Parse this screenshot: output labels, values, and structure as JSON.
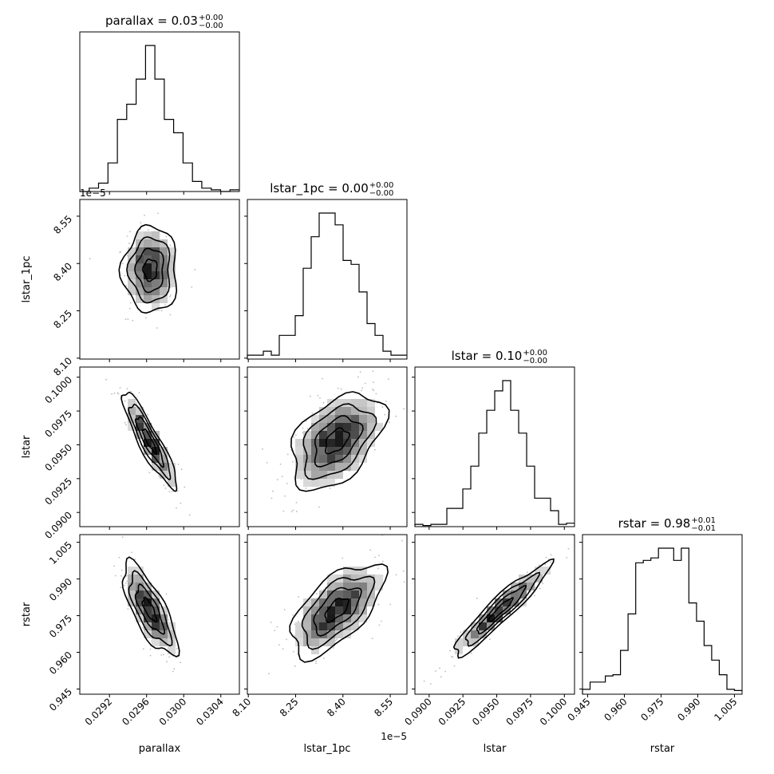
{
  "chart_data": {
    "type": "corner",
    "parameters": [
      "parallax",
      "lstar_1pc",
      "lstar",
      "rstar"
    ],
    "titles": [
      {
        "param": "parallax",
        "label": "parallax = 0.03",
        "sup": "+0.00",
        "sub": "−0.00"
      },
      {
        "param": "lstar_1pc",
        "label": "lstar_1pc = 0.00",
        "sup": "+0.00",
        "sub": "−0.00"
      },
      {
        "param": "lstar",
        "label": "lstar = 0.10",
        "sup": "+0.00",
        "sub": "−0.00"
      },
      {
        "param": "rstar",
        "label": "rstar = 0.98",
        "sup": "+0.01",
        "sub": "−0.01"
      }
    ],
    "axis_labels": {
      "x": [
        "parallax",
        "lstar_1pc",
        "lstar",
        "rstar"
      ],
      "y": [
        "lstar_1pc",
        "lstar",
        "rstar"
      ]
    },
    "offset_labels": {
      "lstar_1pc_x": "1e−5",
      "lstar_1pc_y": "1e−5"
    },
    "ranges": {
      "parallax": [
        0.02888,
        0.0306
      ],
      "lstar_1pc": [
        8.097e-05,
        8.603e-05
      ],
      "lstar": [
        0.08895,
        0.10075
      ],
      "rstar": [
        0.94288,
        1.00813
      ]
    },
    "ticks": {
      "parallax": {
        "values": [
          0.0292,
          0.0296,
          0.03,
          0.0304
        ],
        "labels": [
          "0.0292",
          "0.0296",
          "0.0300",
          "0.0304"
        ]
      },
      "lstar_1pc": {
        "values": [
          8.1e-05,
          8.25e-05,
          8.4e-05,
          8.55e-05
        ],
        "labels": [
          "8.10",
          "8.25",
          "8.40",
          "8.55"
        ]
      },
      "lstar": {
        "values": [
          0.09,
          0.0925,
          0.095,
          0.0975,
          0.1
        ],
        "labels": [
          "0.0900",
          "0.0925",
          "0.0950",
          "0.0975",
          "0.1000"
        ]
      },
      "rstar": {
        "values": [
          0.945,
          0.96,
          0.975,
          0.99,
          1.005
        ],
        "labels": [
          "0.945",
          "0.960",
          "0.975",
          "0.990",
          "1.005"
        ]
      }
    },
    "histograms": [
      {
        "param": "parallax",
        "edges_start": 0.02888,
        "edges_end": 0.0306,
        "counts": [
          0,
          2,
          5,
          17,
          43,
          52,
          67,
          87,
          67,
          43,
          35,
          17,
          6,
          2,
          1,
          0,
          1
        ]
      },
      {
        "param": "lstar_1pc",
        "edges_start": 8.097e-05,
        "edges_end": 8.603e-05,
        "counts": [
          2,
          2,
          4,
          2,
          12,
          12,
          22,
          46,
          62,
          74,
          74,
          68,
          50,
          48,
          34,
          18,
          12,
          4,
          2,
          2
        ]
      },
      {
        "param": "lstar",
        "edges_start": 0.08895,
        "edges_end": 0.10075,
        "counts": [
          2,
          1,
          2,
          2,
          16,
          16,
          33,
          53,
          82,
          102,
          119,
          128,
          102,
          82,
          53,
          25,
          25,
          14,
          2,
          3
        ]
      },
      {
        "param": "rstar",
        "edges_start": 0.94288,
        "edges_end": 1.00813,
        "counts": [
          4,
          10,
          10,
          15,
          16,
          36,
          66,
          108,
          110,
          112,
          120,
          120,
          110,
          120,
          75,
          60,
          40,
          28,
          16,
          4,
          3
        ]
      }
    ],
    "pairs": [
      {
        "x": "parallax",
        "y": "lstar_1pc",
        "row": 1,
        "col": 0,
        "mean": [
          0.02964,
          8.38e-05
        ],
        "sd": [
          0.00014,
          6.5e-07
        ],
        "corr": 0.0
      },
      {
        "x": "parallax",
        "y": "lstar",
        "row": 2,
        "col": 0,
        "mean": [
          0.02963,
          0.0953
        ],
        "sd": [
          0.00014,
          0.0017
        ],
        "corr": -0.9
      },
      {
        "x": "lstar_1pc",
        "y": "lstar",
        "row": 2,
        "col": 1,
        "mean": [
          8.38e-05,
          0.0953
        ],
        "sd": [
          7e-07,
          0.0017
        ],
        "corr": 0.45
      },
      {
        "x": "parallax",
        "y": "rstar",
        "row": 3,
        "col": 0,
        "mean": [
          0.02963,
          0.9775
        ],
        "sd": [
          0.00014,
          0.009
        ],
        "corr": -0.75
      },
      {
        "x": "lstar_1pc",
        "y": "rstar",
        "row": 3,
        "col": 1,
        "mean": [
          8.38e-05,
          0.9775
        ],
        "sd": [
          7e-07,
          0.009
        ],
        "corr": 0.62
      },
      {
        "x": "lstar",
        "y": "rstar",
        "row": 3,
        "col": 2,
        "mean": [
          0.0953,
          0.9775
        ],
        "sd": [
          0.0017,
          0.009
        ],
        "corr": 0.94
      }
    ],
    "contour_levels_sigma": [
      0.5,
      1.0,
      1.5,
      2.0
    ],
    "colors": {
      "line": "#000000",
      "points": "#bbbbbb",
      "background": "#ffffff"
    },
    "grid": false,
    "legend": "none"
  }
}
